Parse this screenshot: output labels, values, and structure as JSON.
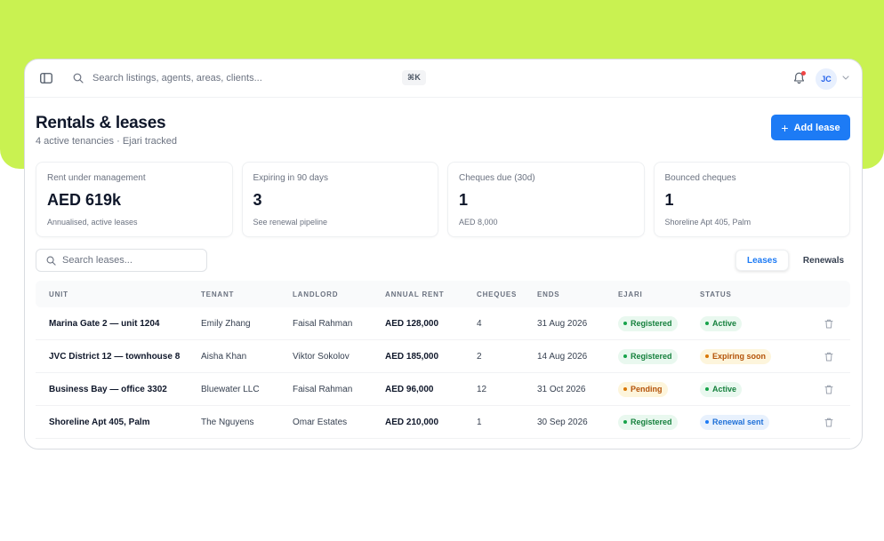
{
  "topbar": {
    "search_placeholder": "Search listings, agents, areas, clients...",
    "shortcut": "⌘K",
    "user_initials": "JC"
  },
  "page": {
    "title": "Rentals & leases",
    "subtitle": "4 active tenancies · Ejari tracked",
    "add_button_label": "Add lease"
  },
  "stats": [
    {
      "label": "Rent under management",
      "value": "AED 619k",
      "note": "Annualised, active leases"
    },
    {
      "label": "Expiring in 90 days",
      "value": "3",
      "note": "See renewal pipeline"
    },
    {
      "label": "Cheques due (30d)",
      "value": "1",
      "note": "AED 8,000"
    },
    {
      "label": "Bounced cheques",
      "value": "1",
      "note": "Shoreline Apt 405, Palm"
    }
  ],
  "lease_search": {
    "placeholder": "Search leases..."
  },
  "tabs": [
    {
      "label": "Leases",
      "active": true
    },
    {
      "label": "Renewals",
      "active": false
    }
  ],
  "table": {
    "headers": [
      "UNIT",
      "TENANT",
      "LANDLORD",
      "ANNUAL RENT",
      "CHEQUES",
      "ENDS",
      "EJARI",
      "STATUS"
    ],
    "rows": [
      {
        "unit": "Marina Gate 2 — unit 1204",
        "tenant": "Emily Zhang",
        "landlord": "Faisal Rahman",
        "rent": "AED 128,000",
        "cheques": "4",
        "ends": "31 Aug 2026",
        "ejari": "Registered",
        "status": "Active"
      },
      {
        "unit": "JVC District 12 — townhouse 8",
        "tenant": "Aisha Khan",
        "landlord": "Viktor Sokolov",
        "rent": "AED 185,000",
        "cheques": "2",
        "ends": "14 Aug 2026",
        "ejari": "Registered",
        "status": "Expiring soon"
      },
      {
        "unit": "Business Bay — office 3302",
        "tenant": "Bluewater LLC",
        "landlord": "Faisal Rahman",
        "rent": "AED 96,000",
        "cheques": "12",
        "ends": "31 Oct 2026",
        "ejari": "Pending",
        "status": "Active"
      },
      {
        "unit": "Shoreline Apt 405, Palm",
        "tenant": "The Nguyens",
        "landlord": "Omar Estates",
        "rent": "AED 210,000",
        "cheques": "1",
        "ends": "30 Sep 2026",
        "ejari": "Registered",
        "status": "Renewal sent"
      }
    ]
  },
  "colors": {
    "accent": "#1d7bf5",
    "background_band": "#c9f251",
    "badge_green": "#16a34a",
    "badge_amber": "#d97706",
    "badge_blue": "#1d7bf5"
  },
  "icons": [
    "sidebar-toggle-icon",
    "search-icon",
    "bell-icon",
    "chevron-down-icon",
    "plus-icon",
    "trash-icon"
  ]
}
